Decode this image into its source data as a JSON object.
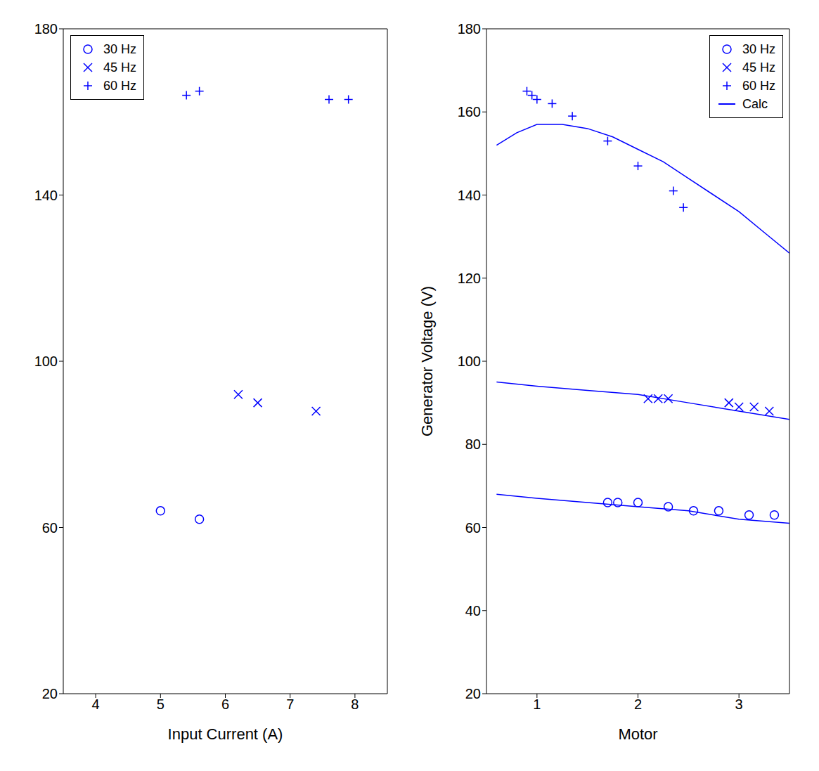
{
  "chart_data": [
    {
      "type": "scatter",
      "x_label": "Input Current (A)",
      "xlim": [
        3.5,
        8.5
      ],
      "xticks": [
        4,
        5,
        6,
        7,
        8
      ],
      "ylim": [
        20,
        180
      ],
      "yticks": [
        20,
        60,
        100,
        140,
        180
      ],
      "legend": "upper left",
      "series": [
        {
          "name": "30 Hz",
          "type": "scatter",
          "marker": "circle",
          "color": "#0000ff",
          "x": [
            5.0,
            5.6
          ],
          "values": [
            64,
            62
          ]
        },
        {
          "name": "45 Hz",
          "type": "scatter",
          "marker": "x",
          "color": "#0000ff",
          "x": [
            6.2,
            6.5,
            7.4
          ],
          "values": [
            92,
            90,
            88
          ]
        },
        {
          "name": "60 Hz",
          "type": "scatter",
          "marker": "plus",
          "color": "#0000ff",
          "x": [
            5.4,
            5.6,
            7.6,
            7.9
          ],
          "values": [
            164,
            165,
            163,
            163
          ]
        }
      ]
    },
    {
      "type": "scatter",
      "x_label": "Motor",
      "y_label": "Generator Voltage (V)",
      "xlim": [
        0.5,
        3.5
      ],
      "xticks": [
        1,
        2,
        3
      ],
      "ylim": [
        20,
        180
      ],
      "yticks": [
        20,
        40,
        60,
        80,
        100,
        120,
        140,
        160,
        180
      ],
      "legend": "upper right",
      "series": [
        {
          "name": "30 Hz",
          "type": "scatter",
          "marker": "circle",
          "color": "#0000ff",
          "x": [
            1.7,
            1.8,
            2.0,
            2.3,
            2.55,
            2.8,
            3.1,
            3.35
          ],
          "values": [
            66,
            66,
            66,
            65,
            64,
            64,
            63,
            63
          ]
        },
        {
          "name": "45 Hz",
          "type": "scatter",
          "marker": "x",
          "color": "#0000ff",
          "x": [
            2.1,
            2.2,
            2.3,
            2.9,
            3.0,
            3.15,
            3.3
          ],
          "values": [
            91,
            91,
            91,
            90,
            89,
            89,
            88
          ]
        },
        {
          "name": "60 Hz",
          "type": "scatter",
          "marker": "plus",
          "color": "#0000ff",
          "x": [
            0.9,
            0.95,
            1.0,
            1.15,
            1.35,
            1.7,
            2.0,
            2.35,
            2.45
          ],
          "values": [
            165,
            164,
            163,
            162,
            159,
            153,
            147,
            141,
            137
          ]
        },
        {
          "name": "Calc",
          "type": "line",
          "line_style": "solid",
          "color": "#0000ff",
          "x": [
            0.6,
            0.8,
            1.0,
            1.25,
            1.5,
            1.75,
            2.0,
            2.25,
            2.5,
            2.75,
            3.0,
            3.25,
            3.5,
            3.5,
            0.6,
            1.0,
            1.5,
            2.0,
            2.5,
            3.0,
            3.5,
            3.5,
            0.6,
            1.0,
            1.5,
            2.0,
            2.5,
            3.0,
            3.5
          ],
          "values": [
            152,
            155,
            157,
            157,
            156,
            154,
            151,
            148,
            144,
            140,
            136,
            131,
            126,
            null,
            95,
            94,
            93,
            92,
            90,
            88,
            86,
            null,
            68,
            67,
            66,
            65,
            64,
            62,
            61
          ]
        }
      ]
    }
  ]
}
